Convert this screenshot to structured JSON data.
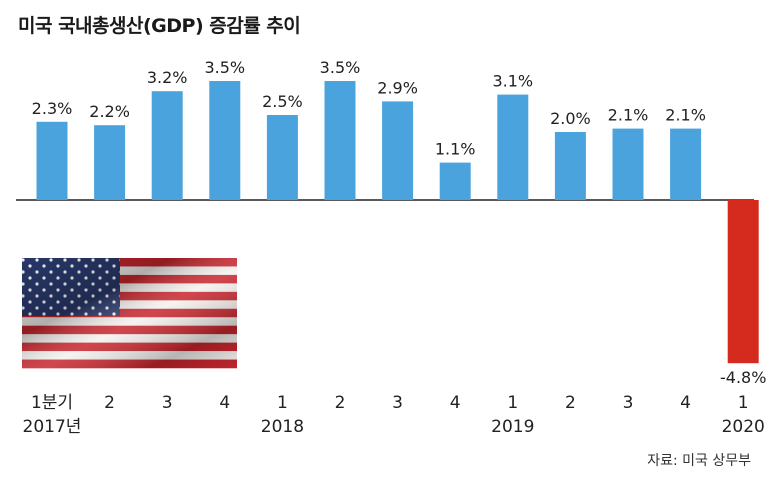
{
  "title": "미국 국내총생산(GDP) 증감률 추이",
  "source": "자료: 미국 상무부",
  "colors": {
    "positive": "#4aa3dc",
    "negative": "#d42b1e",
    "baseline": "#222222"
  },
  "chart_data": {
    "type": "bar",
    "categories": [
      "1분기",
      "2",
      "3",
      "4",
      "1",
      "2",
      "3",
      "4",
      "1",
      "2",
      "3",
      "4",
      "1"
    ],
    "year_labels": [
      {
        "index": 0,
        "label": "2017년"
      },
      {
        "index": 4,
        "label": "2018"
      },
      {
        "index": 8,
        "label": "2019"
      },
      {
        "index": 12,
        "label": "2020"
      }
    ],
    "values": [
      2.3,
      2.2,
      3.2,
      3.5,
      2.5,
      3.5,
      2.9,
      1.1,
      3.1,
      2.0,
      2.1,
      2.1,
      -4.8
    ],
    "data_labels": [
      "2.3%",
      "2.2%",
      "3.2%",
      "3.5%",
      "2.5%",
      "3.5%",
      "2.9%",
      "1.1%",
      "3.1%",
      "2.0%",
      "2.1%",
      "2.1%",
      "-4.8%"
    ],
    "ylim": [
      -4.8,
      3.5
    ],
    "grid": false,
    "legend": "none"
  }
}
